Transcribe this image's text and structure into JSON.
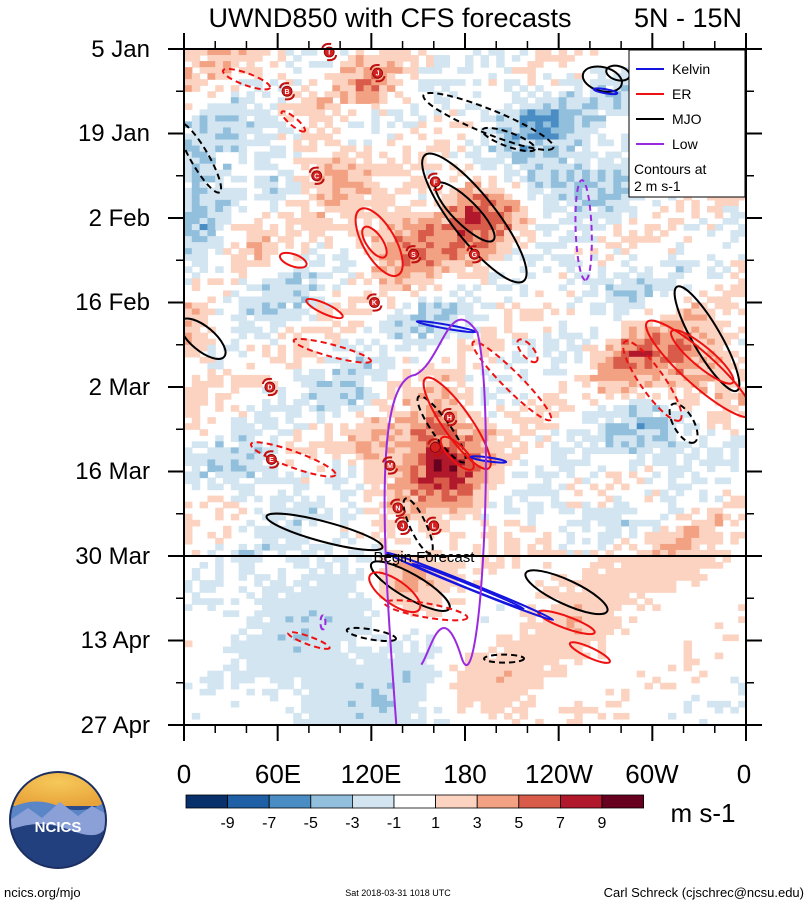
{
  "chart_data": {
    "type": "heatmap",
    "title": "UWND850 with CFS forecasts",
    "region": "5N - 15N",
    "y_tick_labels": [
      "5 Jan",
      "19 Jan",
      "2 Feb",
      "16 Feb",
      "2 Mar",
      "16 Mar",
      "30 Mar",
      "13 Apr",
      "27 Apr"
    ],
    "x_tick_labels": [
      "0",
      "60E",
      "120E",
      "180",
      "120W",
      "60W",
      "0"
    ],
    "x_range_deg_east": [
      0,
      360
    ],
    "time_range_days": [
      0,
      112
    ],
    "forecast_start_day": 84,
    "forecast_label": "Begin Forecast",
    "colorbar": {
      "tick_labels": [
        "-9",
        "-7",
        "-5",
        "-3",
        "-1",
        "1",
        "3",
        "5",
        "7",
        "9"
      ],
      "colors": [
        "#08306b",
        "#1f5fa6",
        "#4a8cc4",
        "#91bfdc",
        "#d2e5f0",
        "#ffffff",
        "#fbd3c0",
        "#f2a283",
        "#d95b4a",
        "#b2182b",
        "#67001f"
      ],
      "units": "m s-1"
    },
    "legend": {
      "items": [
        {
          "label": "Kelvin",
          "color": "#1515e0"
        },
        {
          "label": "ER",
          "color": "#ee1111"
        },
        {
          "label": "MJO",
          "color": "#000000"
        },
        {
          "label": "Low",
          "color": "#9a2ae0"
        }
      ],
      "note_line1": "Contours at",
      "note_line2": "2 m s-1"
    },
    "tc_markers": [
      {
        "label": "I",
        "lon": 93,
        "day": 0.5
      },
      {
        "label": "J",
        "lon": 124,
        "day": 4
      },
      {
        "label": "B",
        "lon": 66,
        "day": 7
      },
      {
        "label": "C",
        "lon": 85,
        "day": 21
      },
      {
        "label": "F",
        "lon": 161,
        "day": 22
      },
      {
        "label": "S",
        "lon": 147,
        "day": 34
      },
      {
        "label": "G",
        "lon": 186,
        "day": 34
      },
      {
        "label": "K",
        "lon": 122,
        "day": 42
      },
      {
        "label": "D",
        "lon": 55,
        "day": 56
      },
      {
        "label": "H",
        "lon": 170,
        "day": 61
      },
      {
        "label": "",
        "lon": 161,
        "day": 66
      },
      {
        "label": "E",
        "lon": 56,
        "day": 68
      },
      {
        "label": "M",
        "lon": 132,
        "day": 69
      },
      {
        "label": "N",
        "lon": 137,
        "day": 76
      },
      {
        "label": "J",
        "lon": 140,
        "day": 79
      },
      {
        "label": "L",
        "lon": 160,
        "day": 79
      }
    ]
  },
  "colors": {
    "kelvin": "#1515e0",
    "er": "#ee1111",
    "mjo": "#000000",
    "low": "#9a2ae0"
  },
  "footer": {
    "logo_text": "NCICS",
    "url": "ncics.org/mjo",
    "timestamp": "Sat 2018-03-31 1018 UTC",
    "author": "Carl Schreck (cjschrec@ncsu.edu)"
  }
}
